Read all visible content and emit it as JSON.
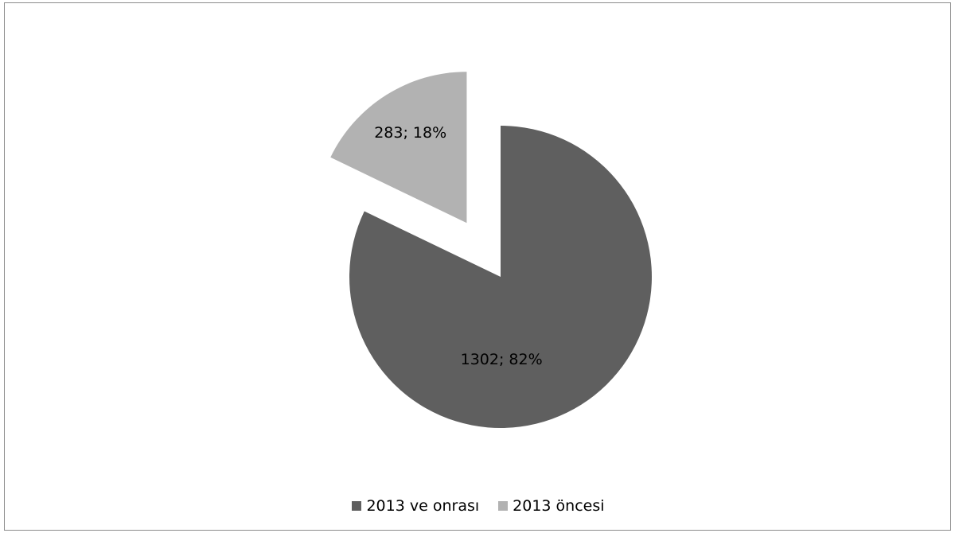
{
  "chart_data": {
    "type": "pie",
    "title": "",
    "categories": [
      "2013 ve onrası",
      "2013 öncesi"
    ],
    "values": [
      1302,
      283
    ],
    "percent_labels": [
      "82%",
      "18%"
    ],
    "data_labels": [
      "1302; 82%",
      "283; 18%"
    ],
    "colors": [
      "#5f5f5f",
      "#b2b2b2"
    ],
    "exploded": [
      false,
      true
    ],
    "legend_position": "bottom"
  },
  "legend": {
    "items": [
      {
        "label": "2013 ve onrası",
        "color": "#5f5f5f"
      },
      {
        "label": "2013 öncesi",
        "color": "#b2b2b2"
      }
    ]
  }
}
